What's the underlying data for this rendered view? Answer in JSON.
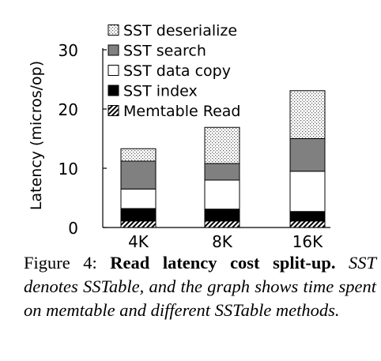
{
  "chart_data": {
    "type": "bar",
    "stacked": true,
    "categories": [
      "4K",
      "8K",
      "16K"
    ],
    "ylabel": "Latency (micros/op)",
    "ylim": [
      0,
      30
    ],
    "yticks": [
      0,
      10,
      20,
      30
    ],
    "grid": false,
    "legend_placement": "top",
    "series": [
      {
        "name": "Memtable Read",
        "values": [
          1.1,
          1.1,
          1.1
        ],
        "pattern": "diagonal-hatch"
      },
      {
        "name": "SST index",
        "values": [
          2.1,
          2.0,
          1.6
        ],
        "pattern": "solid-black"
      },
      {
        "name": "SST data copy",
        "values": [
          3.3,
          4.9,
          6.8
        ],
        "pattern": "white"
      },
      {
        "name": "SST search",
        "values": [
          4.7,
          2.8,
          5.5
        ],
        "pattern": "gray"
      },
      {
        "name": "SST deserialize",
        "values": [
          2.1,
          6.1,
          8.1
        ],
        "pattern": "dotted"
      }
    ],
    "legend_order": [
      "SST deserialize",
      "SST search",
      "SST data copy",
      "SST index",
      "Memtable Read"
    ]
  },
  "caption": {
    "lead": "Figure 4:",
    "title": "Read latency cost split-up.",
    "body": "SST denotes SSTable, and the graph shows time spent on memtable and different SSTable methods."
  },
  "colors": {
    "search": "#808080",
    "black": "#000000",
    "white": "#ffffff"
  }
}
